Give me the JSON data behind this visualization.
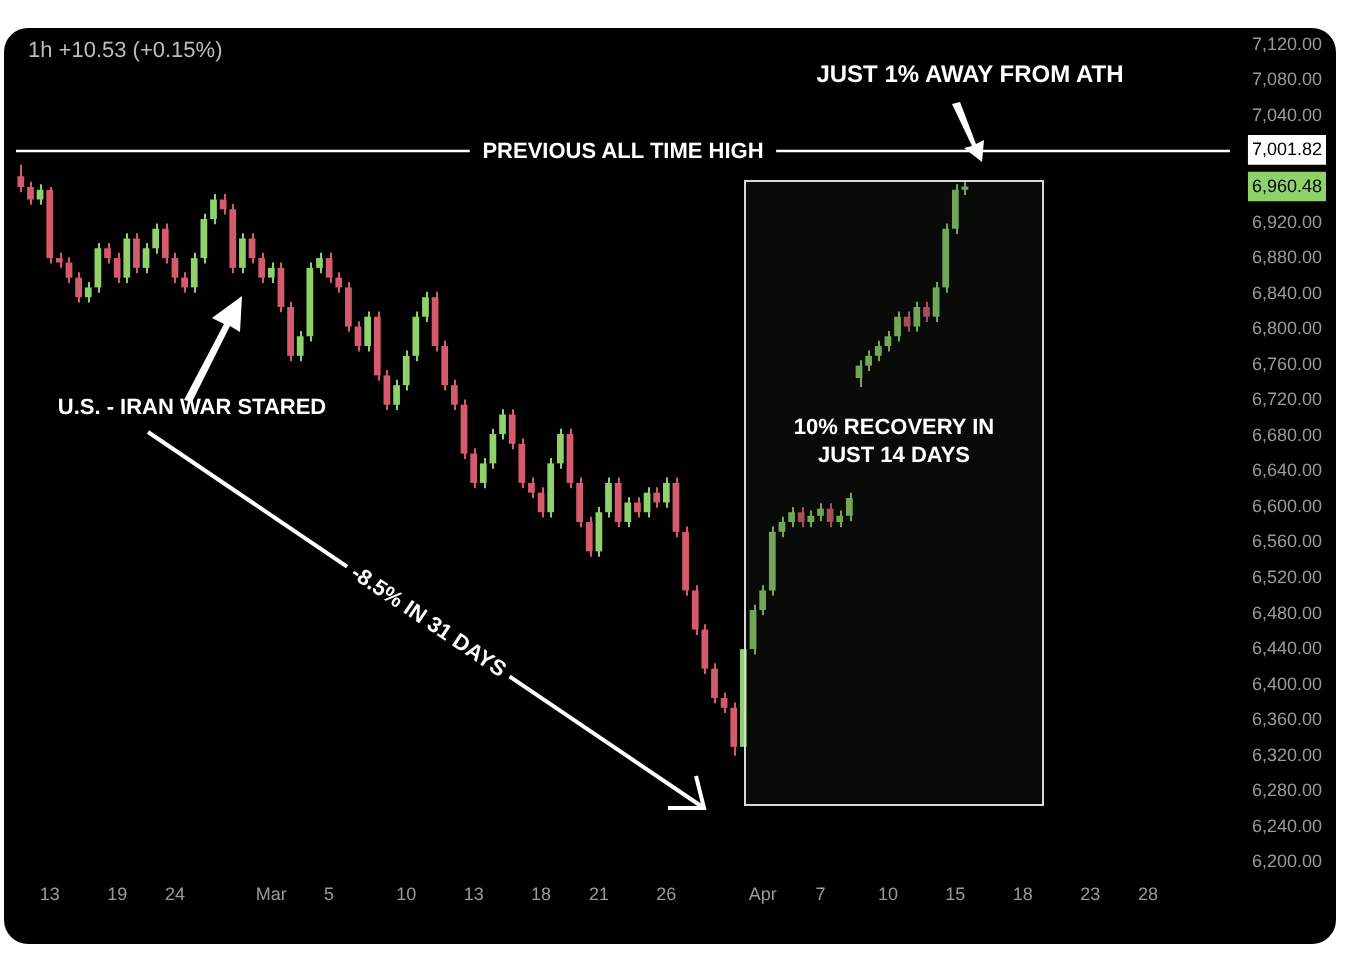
{
  "chart_data": {
    "type": "candlestick",
    "subtitle": "1h +10.53 (+0.15%)",
    "categories": [
      null,
      null,
      null,
      "13",
      null,
      null,
      null,
      null,
      null,
      null,
      "19",
      null,
      null,
      null,
      null,
      null,
      "24",
      null,
      null,
      null,
      null,
      null,
      null,
      null,
      null,
      null,
      "Mar",
      null,
      null,
      null,
      null,
      null,
      "5",
      null,
      null,
      null,
      null,
      null,
      null,
      null,
      "10",
      null,
      null,
      null,
      null,
      null,
      null,
      "13",
      null,
      null,
      null,
      null,
      null,
      null,
      "18",
      null,
      null,
      null,
      null,
      null,
      "21",
      null,
      null,
      null,
      null,
      null,
      null,
      "26",
      null,
      null,
      null,
      null,
      null,
      null,
      null,
      null,
      null,
      "Apr",
      null,
      null,
      null,
      null,
      null,
      "7",
      null,
      null,
      null,
      null,
      null,
      null,
      "10",
      null,
      null,
      null,
      null,
      null,
      null,
      "15",
      null,
      null,
      null,
      null,
      null,
      null,
      "18",
      null,
      null,
      null,
      null,
      null,
      null,
      "23",
      null,
      null,
      null,
      null,
      null,
      "28",
      null,
      null,
      null,
      null,
      null,
      null,
      null,
      null
    ],
    "ohlc": [
      [
        6972,
        6985,
        6954,
        6960
      ],
      [
        6960,
        6966,
        6940,
        6946
      ],
      [
        6946,
        6963,
        6940,
        6957
      ],
      [
        6957,
        6960,
        6874,
        6880
      ],
      [
        6880,
        6886,
        6869,
        6875
      ],
      [
        6875,
        6881,
        6852,
        6858
      ],
      [
        6858,
        6864,
        6830,
        6836
      ],
      [
        6836,
        6853,
        6830,
        6847
      ],
      [
        6847,
        6897,
        6841,
        6891
      ],
      [
        6891,
        6897,
        6874,
        6880
      ],
      [
        6880,
        6886,
        6852,
        6858
      ],
      [
        6858,
        6908,
        6852,
        6902
      ],
      [
        6902,
        6908,
        6863,
        6869
      ],
      [
        6869,
        6897,
        6863,
        6891
      ],
      [
        6891,
        6919,
        6885,
        6913
      ],
      [
        6913,
        6919,
        6874,
        6880
      ],
      [
        6880,
        6886,
        6852,
        6858
      ],
      [
        6858,
        6864,
        6841,
        6847
      ],
      [
        6847,
        6886,
        6841,
        6880
      ],
      [
        6880,
        6930,
        6874,
        6924
      ],
      [
        6924,
        6952,
        6918,
        6946
      ],
      [
        6946,
        6952,
        6929,
        6935
      ],
      [
        6935,
        6941,
        6863,
        6869
      ],
      [
        6869,
        6908,
        6863,
        6902
      ],
      [
        6902,
        6908,
        6874,
        6880
      ],
      [
        6880,
        6886,
        6852,
        6858
      ],
      [
        6858,
        6875,
        6852,
        6869
      ],
      [
        6869,
        6875,
        6819,
        6825
      ],
      [
        6825,
        6831,
        6764,
        6770
      ],
      [
        6770,
        6798,
        6764,
        6792
      ],
      [
        6792,
        6875,
        6786,
        6869
      ],
      [
        6869,
        6886,
        6863,
        6880
      ],
      [
        6880,
        6886,
        6852,
        6858
      ],
      [
        6858,
        6864,
        6841,
        6847
      ],
      [
        6847,
        6853,
        6797,
        6803
      ],
      [
        6803,
        6809,
        6775,
        6781
      ],
      [
        6781,
        6820,
        6775,
        6814
      ],
      [
        6814,
        6820,
        6742,
        6748
      ],
      [
        6748,
        6754,
        6709,
        6715
      ],
      [
        6715,
        6743,
        6709,
        6737
      ],
      [
        6737,
        6776,
        6731,
        6770
      ],
      [
        6770,
        6820,
        6764,
        6814
      ],
      [
        6814,
        6842,
        6808,
        6836
      ],
      [
        6836,
        6842,
        6775,
        6781
      ],
      [
        6781,
        6787,
        6731,
        6737
      ],
      [
        6737,
        6743,
        6709,
        6715
      ],
      [
        6715,
        6721,
        6654,
        6660
      ],
      [
        6660,
        6666,
        6621,
        6627
      ],
      [
        6627,
        6655,
        6621,
        6649
      ],
      [
        6649,
        6688,
        6643,
        6682
      ],
      [
        6682,
        6710,
        6676,
        6704
      ],
      [
        6704,
        6710,
        6665,
        6671
      ],
      [
        6671,
        6677,
        6621,
        6627
      ],
      [
        6627,
        6633,
        6610,
        6616
      ],
      [
        6616,
        6622,
        6588,
        6594
      ],
      [
        6594,
        6655,
        6588,
        6649
      ],
      [
        6649,
        6688,
        6643,
        6682
      ],
      [
        6682,
        6688,
        6621,
        6627
      ],
      [
        6627,
        6633,
        6577,
        6583
      ],
      [
        6583,
        6589,
        6544,
        6550
      ],
      [
        6550,
        6600,
        6544,
        6594
      ],
      [
        6594,
        6633,
        6588,
        6627
      ],
      [
        6627,
        6633,
        6577,
        6583
      ],
      [
        6583,
        6611,
        6577,
        6605
      ],
      [
        6605,
        6611,
        6588,
        6594
      ],
      [
        6594,
        6622,
        6588,
        6616
      ],
      [
        6616,
        6622,
        6599,
        6605
      ],
      [
        6605,
        6633,
        6599,
        6627
      ],
      [
        6627,
        6633,
        6566,
        6572
      ],
      [
        6572,
        6578,
        6500,
        6506
      ],
      [
        6506,
        6512,
        6456,
        6462
      ],
      [
        6462,
        6468,
        6412,
        6418
      ],
      [
        6418,
        6424,
        6379,
        6385
      ],
      [
        6385,
        6391,
        6368,
        6374
      ],
      [
        6374,
        6380,
        6320,
        6330
      ],
      [
        6330,
        6446,
        6324,
        6440
      ],
      [
        6440,
        6490,
        6434,
        6484
      ],
      [
        6484,
        6512,
        6478,
        6506
      ],
      [
        6506,
        6578,
        6500,
        6572
      ],
      [
        6572,
        6589,
        6566,
        6583
      ],
      [
        6583,
        6600,
        6577,
        6594
      ],
      [
        6594,
        6600,
        6577,
        6583
      ],
      [
        6583,
        6596,
        6577,
        6590
      ],
      [
        6590,
        6604,
        6584,
        6598
      ],
      [
        6598,
        6604,
        6577,
        6583
      ],
      [
        6583,
        6596,
        6577,
        6590
      ],
      [
        6590,
        6616,
        6584,
        6610
      ],
      [
        6745,
        6765,
        6735,
        6759
      ],
      [
        6759,
        6776,
        6753,
        6770
      ],
      [
        6770,
        6787,
        6764,
        6781
      ],
      [
        6781,
        6798,
        6775,
        6792
      ],
      [
        6792,
        6820,
        6786,
        6814
      ],
      [
        6814,
        6820,
        6797,
        6803
      ],
      [
        6803,
        6831,
        6797,
        6825
      ],
      [
        6825,
        6831,
        6808,
        6814
      ],
      [
        6814,
        6853,
        6808,
        6847
      ],
      [
        6847,
        6919,
        6841,
        6913
      ],
      [
        6913,
        6963,
        6907,
        6957
      ],
      [
        6957,
        6966,
        6951,
        6960.48
      ],
      null,
      null,
      null,
      null,
      null,
      null,
      null,
      null,
      null,
      null,
      null,
      null,
      null,
      null,
      null,
      null,
      null,
      null,
      null,
      null,
      null,
      null,
      null,
      null,
      null,
      null,
      null
    ],
    "ylim": [
      6200,
      7120
    ],
    "yticks": [
      {
        "value": 7120,
        "label": "7,120.00"
      },
      {
        "value": 7080,
        "label": "7,080.00"
      },
      {
        "value": 7040,
        "label": "7,040.00"
      },
      {
        "value": 7001.82,
        "label": "7,001.82"
      },
      {
        "value": 6960.48,
        "label": "6,960.48"
      },
      {
        "value": 6920,
        "label": "6,920.00"
      },
      {
        "value": 6880,
        "label": "6,880.00"
      },
      {
        "value": 6840,
        "label": "6,840.00"
      },
      {
        "value": 6800,
        "label": "6,800.00"
      },
      {
        "value": 6760,
        "label": "6,760.00"
      },
      {
        "value": 6720,
        "label": "6,720.00"
      },
      {
        "value": 6680,
        "label": "6,680.00"
      },
      {
        "value": 6640,
        "label": "6,640.00"
      },
      {
        "value": 6600,
        "label": "6,600.00"
      },
      {
        "value": 6560,
        "label": "6,560.00"
      },
      {
        "value": 6520,
        "label": "6,520.00"
      },
      {
        "value": 6480,
        "label": "6,480.00"
      },
      {
        "value": 6440,
        "label": "6,440.00"
      },
      {
        "value": 6400,
        "label": "6,400.00"
      },
      {
        "value": 6360,
        "label": "6,360.00"
      },
      {
        "value": 6320,
        "label": "6,320.00"
      },
      {
        "value": 6280,
        "label": "6,280.00"
      },
      {
        "value": 6240,
        "label": "6,240.00"
      },
      {
        "value": 6200,
        "label": "6,200.00"
      }
    ],
    "ref_lines": [
      {
        "axis": "y",
        "value": 7001.82,
        "label": "PREVIOUS ALL TIME HIGH",
        "color": "#ffffff"
      }
    ],
    "annotations": [
      "JUST 1% AWAY FROM ATH",
      "U.S. - IRAN WAR STARED",
      "10% RECOVERY IN JUST 14 DAYS",
      "-8.5% IN 31 DAYS"
    ]
  }
}
